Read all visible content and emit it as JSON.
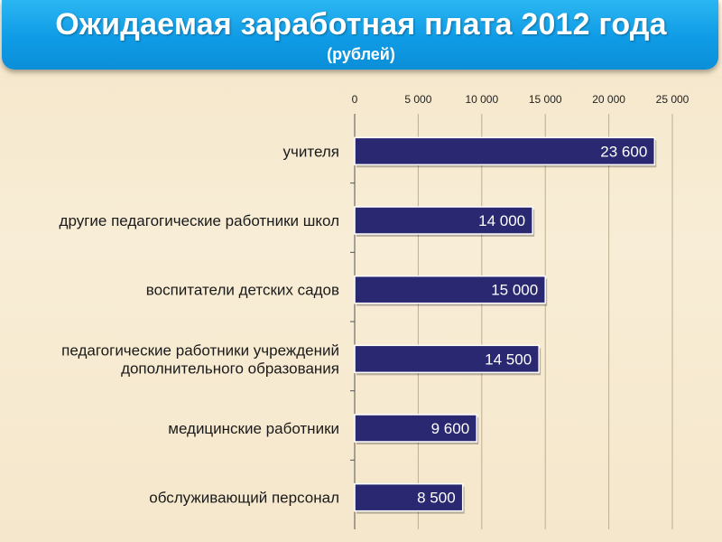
{
  "header": {
    "title": "Ожидаемая заработная плата 2012 года",
    "subtitle": "(рублей)"
  },
  "colors": {
    "title_bg": "#1aa6ee",
    "bar": "#2a2870",
    "bar_border": "#ffffff",
    "background": "#f6e9cf"
  },
  "chart_data": {
    "type": "bar",
    "orientation": "horizontal",
    "title": "Ожидаемая заработная плата 2012 года",
    "subtitle": "(рублей)",
    "xlim": [
      0,
      25000
    ],
    "x_ticks": [
      0,
      5000,
      10000,
      15000,
      20000,
      25000
    ],
    "x_tick_labels": [
      "0",
      "5 000",
      "10 000",
      "15 000",
      "20 000",
      "25 000"
    ],
    "x_axis_position": "top",
    "grid": true,
    "categories": [
      [
        "учителя"
      ],
      [
        "другие педагогические работники школ"
      ],
      [
        "воспитатели детских садов"
      ],
      [
        "педагогические работники учреждений",
        "дополнительного образования"
      ],
      [
        "медицинские работники"
      ],
      [
        "обслуживающий персонал"
      ]
    ],
    "values": [
      23600,
      14000,
      15000,
      14500,
      9600,
      8500
    ],
    "data_labels": [
      "23 600",
      "14 000",
      "15 000",
      "14 500",
      "9 600",
      "8 500"
    ]
  }
}
